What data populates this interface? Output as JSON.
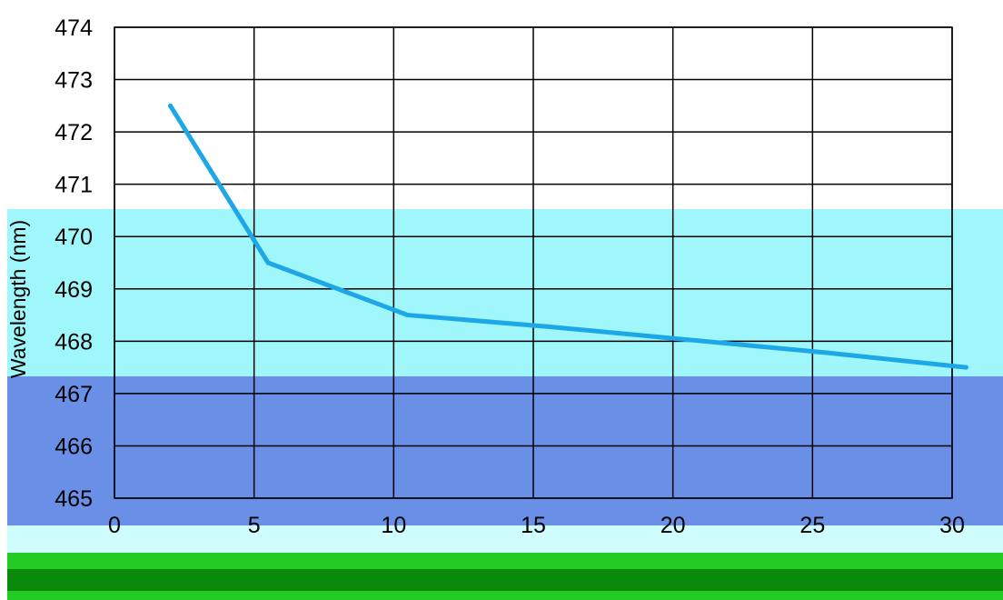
{
  "chart_data": {
    "type": "line",
    "title": "",
    "xlabel": "",
    "ylabel": "Wavelength (nm)",
    "x": [
      2,
      5.5,
      10.5,
      15.5,
      20.5,
      25.5,
      30.5
    ],
    "series": [
      {
        "values": [
          472.5,
          469.5,
          468.5,
          468.28,
          468.03,
          467.78,
          467.5
        ]
      }
    ],
    "xlim": [
      0,
      30
    ],
    "ylim": [
      465,
      474
    ],
    "xticks": [
      "0",
      "5",
      "10",
      "15",
      "20",
      "25",
      "30"
    ],
    "yticks": [
      "465",
      "466",
      "467",
      "468",
      "469",
      "470",
      "471",
      "472",
      "473",
      "474"
    ],
    "grid": true,
    "line_color": "#1ea7e6",
    "colors": {
      "plot_bg": "#ffffff",
      "grid": "#000000",
      "band_cyan": "#9ff7fb",
      "band_blue": "#6a8fe6",
      "band_green": "#22cc22",
      "band_green_dark": "#0a8a0a"
    }
  }
}
